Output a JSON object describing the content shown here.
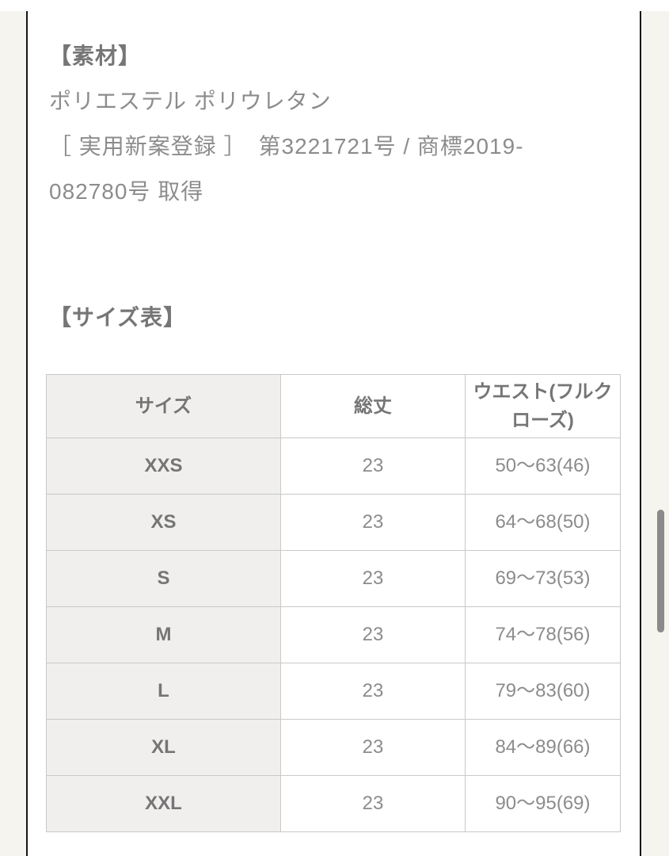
{
  "colors": {
    "page_background": "#f6f4ee",
    "panel_background": "#ffffff",
    "frame_border": "#151515",
    "table_border": "#c9c9c9",
    "size_column_background": "#f0efee",
    "heading_text": "#767676",
    "body_text": "#8c8c8c",
    "scrollbar_thumb": "#8a8a8a"
  },
  "material_section": {
    "heading": "【素材】",
    "lines": [
      "ポリエステル ポリウレタン",
      "［ 実用新案登録 ］　第3221721号 / 商標2019-",
      "082780号 取得"
    ]
  },
  "size_section": {
    "heading": "【サイズ表】",
    "table": {
      "columns": [
        "サイズ",
        "総丈",
        "ウエスト(フルクローズ)"
      ],
      "rows": [
        {
          "size": "XXS",
          "length": "23",
          "waist": "50〜63(46)"
        },
        {
          "size": "XS",
          "length": "23",
          "waist": "64〜68(50)"
        },
        {
          "size": "S",
          "length": "23",
          "waist": "69〜73(53)"
        },
        {
          "size": "M",
          "length": "23",
          "waist": "74〜78(56)"
        },
        {
          "size": "L",
          "length": "23",
          "waist": "79〜83(60)"
        },
        {
          "size": "XL",
          "length": "23",
          "waist": "84〜89(66)"
        },
        {
          "size": "XXL",
          "length": "23",
          "waist": "90〜95(69)"
        }
      ]
    }
  },
  "scrollbar": {
    "orientation": "vertical"
  }
}
